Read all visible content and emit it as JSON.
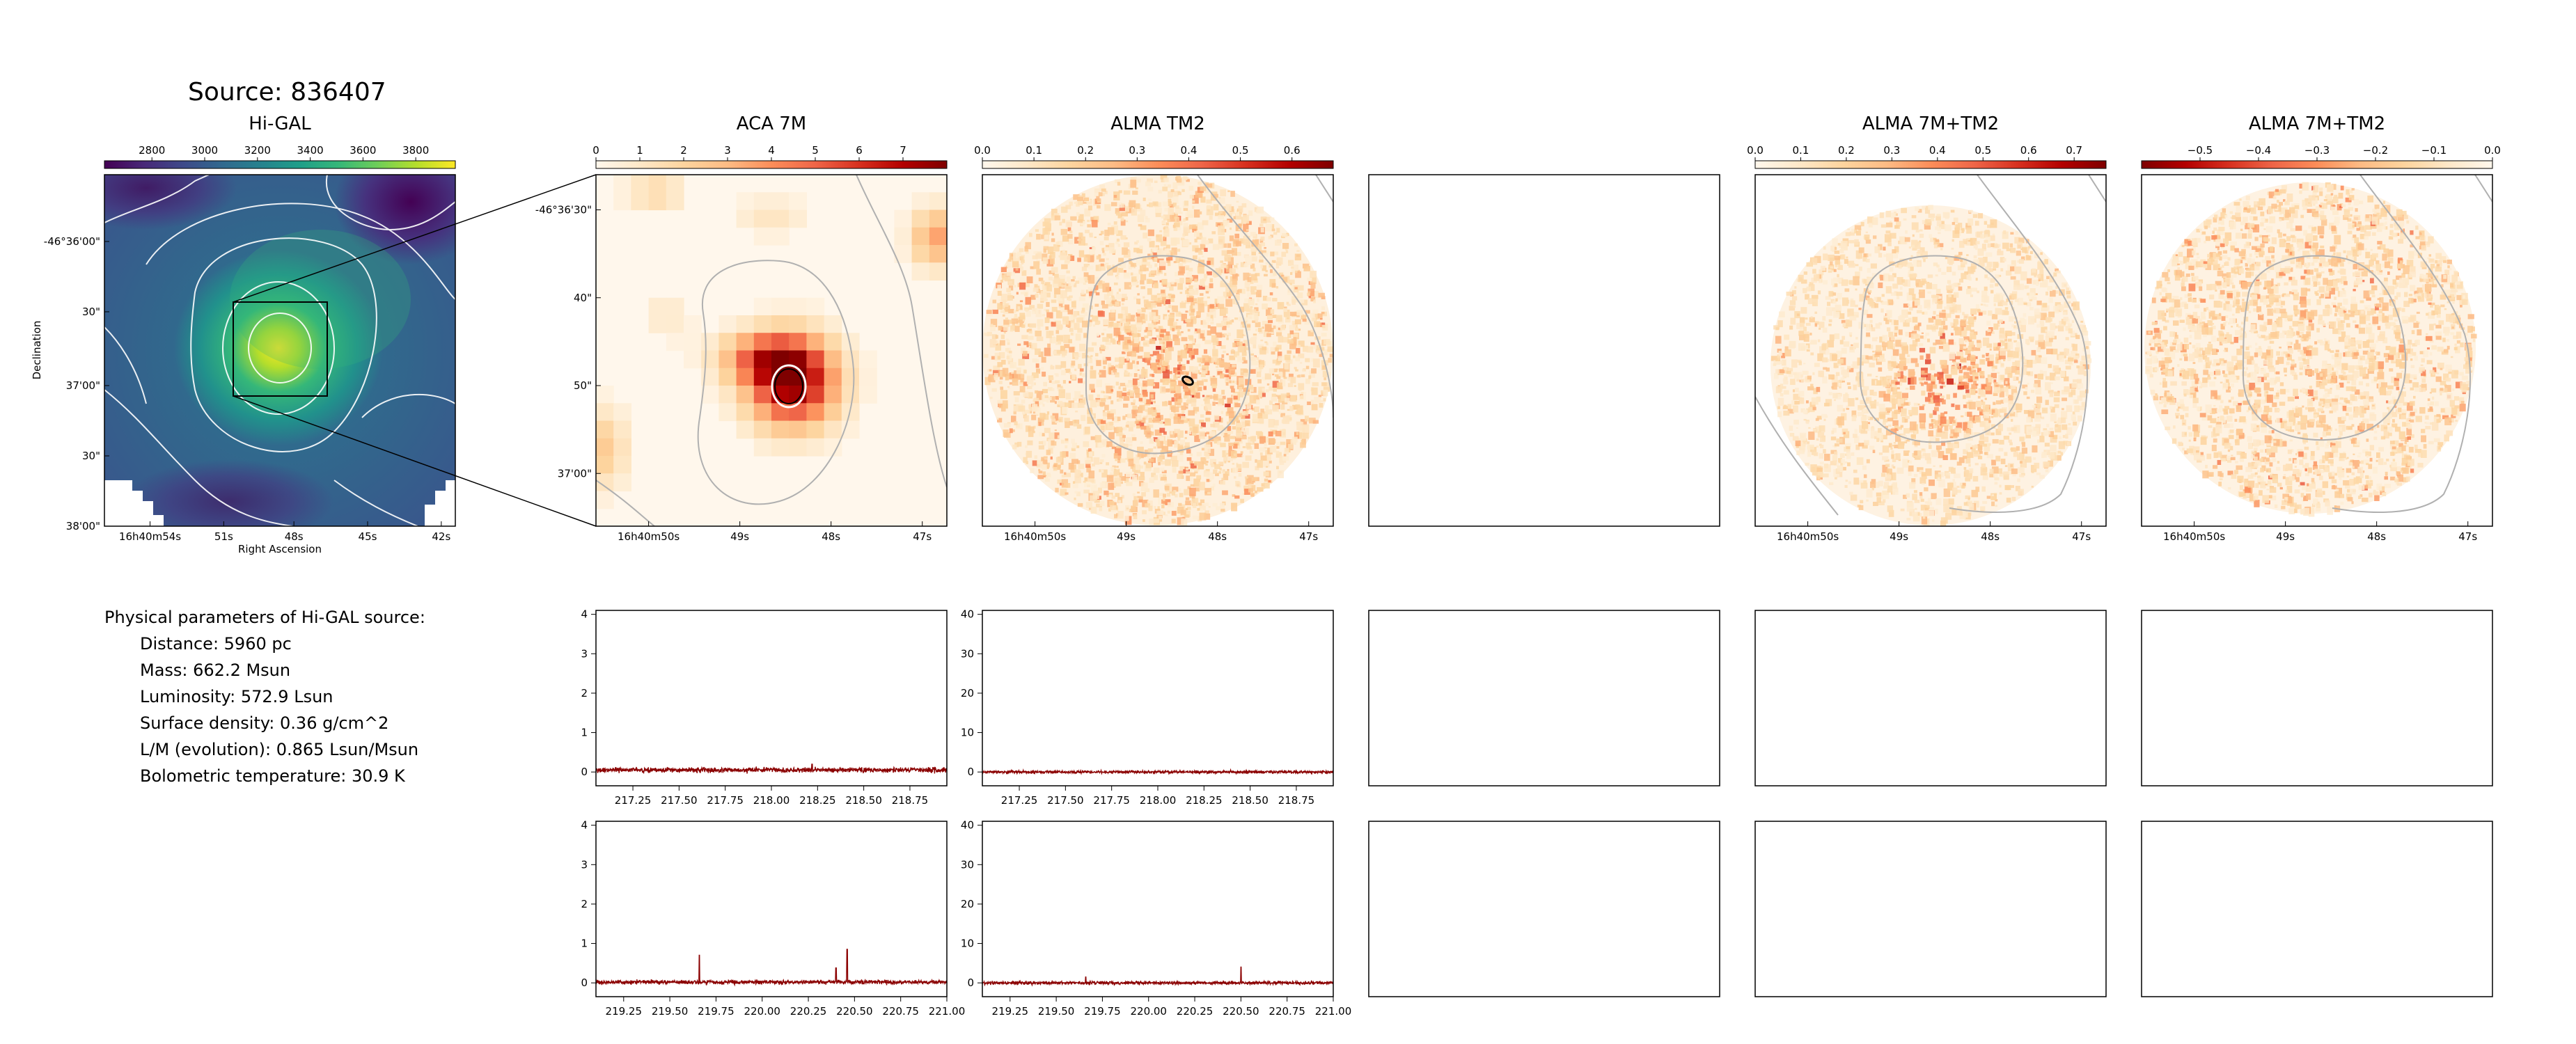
{
  "source_title": "Source: 836407",
  "colors": {
    "viridis": [
      "#440154",
      "#482878",
      "#3e4989",
      "#31688e",
      "#26828e",
      "#1f9e89",
      "#35b779",
      "#6ece58",
      "#b5de2b",
      "#fde725"
    ],
    "orrd": [
      "#fff7ec",
      "#fee8c8",
      "#fdd49e",
      "#fdbb84",
      "#fc8d59",
      "#ef6548",
      "#d7301f",
      "#b30000",
      "#7f0000"
    ],
    "spectrum_line": "#8b0000",
    "contour_white": "#ffffff",
    "contour_gray": "#b0b0b0"
  },
  "params": {
    "heading": "Physical parameters of Hi-GAL source:",
    "lines": [
      "Distance: 5960 pc",
      "Mass: 662.2 Msun",
      "Luminosity: 572.9 Lsun",
      "Surface density: 0.36 g/cm^2",
      "L/M (evolution): 0.865 Lsun/Msun",
      "Bolometric temperature: 30.9 K"
    ]
  },
  "chart_data": [
    {
      "type": "heatmap",
      "title": "Hi-GAL",
      "colormap": "viridis",
      "colorbar_ticks": [
        "2800",
        "3000",
        "3200",
        "3400",
        "3600",
        "3800"
      ],
      "colorbar_range": [
        2620,
        3950
      ],
      "xlabel": "Right Ascension",
      "ylabel": "Declination",
      "x_ticks": [
        "16h40m54s",
        "51s",
        "48s",
        "45s",
        "42s"
      ],
      "y_ticks": [
        "-46°36'00\"",
        "30\"",
        "37'00\"",
        "30\"",
        "38'00\""
      ],
      "peak_value": 3950,
      "contours": true,
      "zoom_box": true
    },
    {
      "type": "heatmap",
      "title": "ACA 7M",
      "colormap": "OrRd",
      "colorbar_ticks": [
        "0",
        "1",
        "2",
        "3",
        "4",
        "5",
        "6",
        "7"
      ],
      "colorbar_range": [
        0,
        8
      ],
      "x_ticks": [
        "16h40m50s",
        "49s",
        "48s",
        "47s"
      ],
      "y_ticks": [
        "-46°36'30\"",
        "40\"",
        "50\"",
        "37'00\""
      ],
      "peak_value": 7.7
    },
    {
      "type": "heatmap",
      "title": "ALMA TM2",
      "colormap": "OrRd",
      "colorbar_ticks": [
        "0.0",
        "0.1",
        "0.2",
        "0.3",
        "0.4",
        "0.5",
        "0.6"
      ],
      "colorbar_range": [
        0,
        0.68
      ],
      "x_ticks": [
        "16h40m50s",
        "49s",
        "48s",
        "47s"
      ]
    },
    {
      "type": "heatmap",
      "title": "",
      "empty": true
    },
    {
      "type": "heatmap",
      "title": "ALMA 7M+TM2",
      "colormap": "OrRd",
      "colorbar_ticks": [
        "0.0",
        "0.1",
        "0.2",
        "0.3",
        "0.4",
        "0.5",
        "0.6",
        "0.7"
      ],
      "colorbar_range": [
        0,
        0.77
      ],
      "x_ticks": [
        "16h40m50s",
        "49s",
        "48s",
        "47s"
      ]
    },
    {
      "type": "heatmap",
      "title": "ALMA 7M+TM2",
      "colormap": "OrRd_r",
      "colorbar_ticks": [
        "−0.5",
        "−0.4",
        "−0.3",
        "−0.2",
        "−0.1",
        "0.0"
      ],
      "colorbar_range": [
        -0.6,
        0
      ],
      "x_ticks": [
        "16h40m50s",
        "49s",
        "48s",
        "47s"
      ]
    },
    {
      "type": "line",
      "title": "",
      "x_ticks": [
        "217.25",
        "217.50",
        "217.75",
        "218.00",
        "218.25",
        "218.50",
        "218.75"
      ],
      "xlim": [
        217.05,
        218.95
      ],
      "y_ticks": [
        "0",
        "1",
        "2",
        "3",
        "4"
      ],
      "ylim": [
        -0.35,
        4.1
      ],
      "baseline": 0.05,
      "noise": 0.06,
      "peaks": [
        {
          "x": 218.22,
          "y": 0.2
        }
      ]
    },
    {
      "type": "line",
      "title": "",
      "x_ticks": [
        "217.25",
        "217.50",
        "217.75",
        "218.00",
        "218.25",
        "218.50",
        "218.75"
      ],
      "xlim": [
        217.05,
        218.95
      ],
      "y_ticks": [
        "0",
        "10",
        "20",
        "30",
        "40"
      ],
      "ylim": [
        -3.5,
        41
      ],
      "baseline": 0,
      "noise": 0.35,
      "peaks": []
    },
    {
      "type": "line",
      "title": "",
      "x_ticks": [
        "219.25",
        "219.50",
        "219.75",
        "220.00",
        "220.25",
        "220.50",
        "220.75",
        "221.00"
      ],
      "xlim": [
        219.1,
        221.0
      ],
      "y_ticks": [
        "0",
        "1",
        "2",
        "3",
        "4"
      ],
      "ylim": [
        -0.35,
        4.1
      ],
      "baseline": 0.02,
      "noise": 0.05,
      "peaks": [
        {
          "x": 219.66,
          "y": 0.7
        },
        {
          "x": 220.4,
          "y": 0.38
        },
        {
          "x": 220.46,
          "y": 0.85
        }
      ]
    },
    {
      "type": "line",
      "title": "",
      "x_ticks": [
        "219.25",
        "219.50",
        "219.75",
        "220.00",
        "220.25",
        "220.50",
        "220.75",
        "221.00"
      ],
      "xlim": [
        219.1,
        221.0
      ],
      "y_ticks": [
        "0",
        "10",
        "20",
        "30",
        "40"
      ],
      "ylim": [
        -3.5,
        41
      ],
      "baseline": 0,
      "noise": 0.4,
      "peaks": [
        {
          "x": 219.66,
          "y": 1.5
        },
        {
          "x": 220.5,
          "y": 4.0
        }
      ]
    }
  ]
}
